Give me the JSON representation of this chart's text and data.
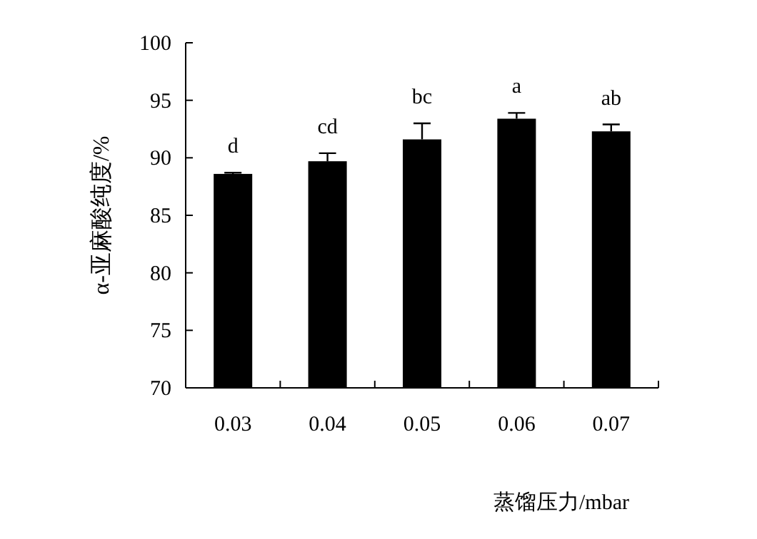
{
  "chart_data": {
    "type": "bar",
    "xlabel": "蒸馏压力/mbar",
    "ylabel": "α-亚麻酸纯度/%",
    "categories": [
      "0.03",
      "0.04",
      "0.05",
      "0.06",
      "0.07"
    ],
    "values": [
      88.6,
      89.7,
      91.6,
      93.4,
      92.3
    ],
    "errors": [
      [
        88.6,
        88.7
      ],
      [
        89.7,
        90.4
      ],
      [
        91.6,
        93.0
      ],
      [
        93.4,
        93.9
      ],
      [
        92.3,
        92.9
      ]
    ],
    "color": "#000000",
    "ylim": [
      70,
      100
    ],
    "yticks": [
      70,
      75,
      80,
      85,
      90,
      95,
      100
    ],
    "grid": false,
    "annotations": [
      "d",
      "cd",
      "bc",
      "a",
      "ab"
    ]
  }
}
